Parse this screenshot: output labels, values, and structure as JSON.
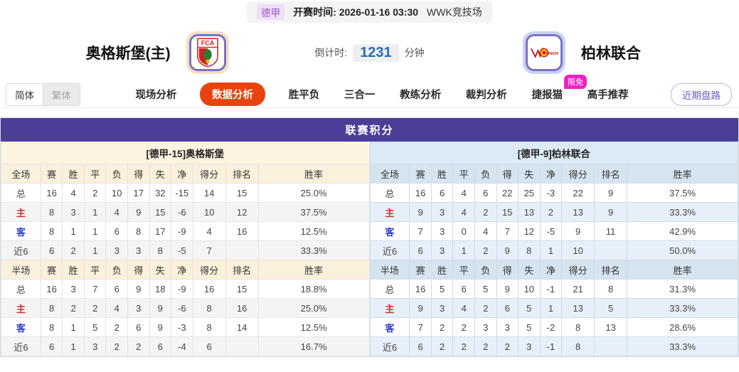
{
  "colors": {
    "accent_red": "#e8430e",
    "purple": "#4b3e96",
    "badge_pink": "#ee22c2",
    "countdown_blue": "#2a6cb5",
    "logo_border": "#7d70c5",
    "home_glow": "#f9dfba",
    "away_glow": "#c7d3f2"
  },
  "top_bar": {
    "league": "德甲",
    "kickoff": "开赛时间:  2026-01-16 03:30",
    "venue": "WWK竞技场"
  },
  "header": {
    "home_team": "奥格斯堡(主)",
    "away_team": "柏林联合",
    "home_logo_text": "FCA",
    "away_logo_text": "UNION",
    "countdown_label": "倒计时:",
    "countdown_value": "1231",
    "countdown_unit": "分钟"
  },
  "nav": {
    "lang_simplified": "简体",
    "lang_traditional": "繁体",
    "tabs": [
      {
        "label": "现场分析",
        "active": false
      },
      {
        "label": "数据分析",
        "active": true
      },
      {
        "label": "胜平负",
        "active": false
      },
      {
        "label": "三合一",
        "active": false
      },
      {
        "label": "教练分析",
        "active": false
      },
      {
        "label": "裁判分析",
        "active": false
      },
      {
        "label": "捷报猫",
        "active": false,
        "badge": "限免"
      },
      {
        "label": "高手推荐",
        "active": false
      }
    ],
    "recent_button": "近期盘路"
  },
  "table": {
    "title": "联赛积分",
    "columns_full": [
      "全场",
      "赛",
      "胜",
      "平",
      "负",
      "得",
      "失",
      "净",
      "得分",
      "排名",
      "胜率"
    ],
    "columns_half": [
      "半场",
      "赛",
      "胜",
      "平",
      "负",
      "得",
      "失",
      "净",
      "得分",
      "排名",
      "胜率"
    ],
    "left": {
      "team_header": "[德甲-15]奥格斯堡",
      "full_rows": [
        [
          "总",
          "16",
          "4",
          "2",
          "10",
          "17",
          "32",
          "-15",
          "14",
          "15",
          "25.0%"
        ],
        [
          "主",
          "8",
          "3",
          "1",
          "4",
          "9",
          "15",
          "-6",
          "10",
          "12",
          "37.5%"
        ],
        [
          "客",
          "8",
          "1",
          "1",
          "6",
          "8",
          "17",
          "-9",
          "4",
          "16",
          "12.5%"
        ],
        [
          "近6",
          "6",
          "2",
          "1",
          "3",
          "3",
          "8",
          "-5",
          "7",
          "",
          "33.3%"
        ]
      ],
      "half_rows": [
        [
          "总",
          "16",
          "3",
          "7",
          "6",
          "9",
          "18",
          "-9",
          "16",
          "15",
          "18.8%"
        ],
        [
          "主",
          "8",
          "2",
          "2",
          "4",
          "3",
          "9",
          "-6",
          "8",
          "16",
          "25.0%"
        ],
        [
          "客",
          "8",
          "1",
          "5",
          "2",
          "6",
          "9",
          "-3",
          "8",
          "14",
          "12.5%"
        ],
        [
          "近6",
          "6",
          "1",
          "3",
          "2",
          "2",
          "6",
          "-4",
          "6",
          "",
          "16.7%"
        ]
      ]
    },
    "right": {
      "team_header": "[德甲-9]柏林联合",
      "full_rows": [
        [
          "总",
          "16",
          "6",
          "4",
          "6",
          "22",
          "25",
          "-3",
          "22",
          "9",
          "37.5%"
        ],
        [
          "主",
          "9",
          "3",
          "4",
          "2",
          "15",
          "13",
          "2",
          "13",
          "9",
          "33.3%"
        ],
        [
          "客",
          "7",
          "3",
          "0",
          "4",
          "7",
          "12",
          "-5",
          "9",
          "11",
          "42.9%"
        ],
        [
          "近6",
          "6",
          "3",
          "1",
          "2",
          "9",
          "8",
          "1",
          "10",
          "",
          "50.0%"
        ]
      ],
      "half_rows": [
        [
          "总",
          "16",
          "5",
          "6",
          "5",
          "9",
          "10",
          "-1",
          "21",
          "8",
          "31.3%"
        ],
        [
          "主",
          "9",
          "3",
          "4",
          "2",
          "6",
          "5",
          "1",
          "13",
          "5",
          "33.3%"
        ],
        [
          "客",
          "7",
          "2",
          "2",
          "3",
          "3",
          "5",
          "-2",
          "8",
          "13",
          "28.6%"
        ],
        [
          "近6",
          "6",
          "2",
          "2",
          "2",
          "2",
          "3",
          "-1",
          "8",
          "",
          "33.3%"
        ]
      ]
    }
  }
}
